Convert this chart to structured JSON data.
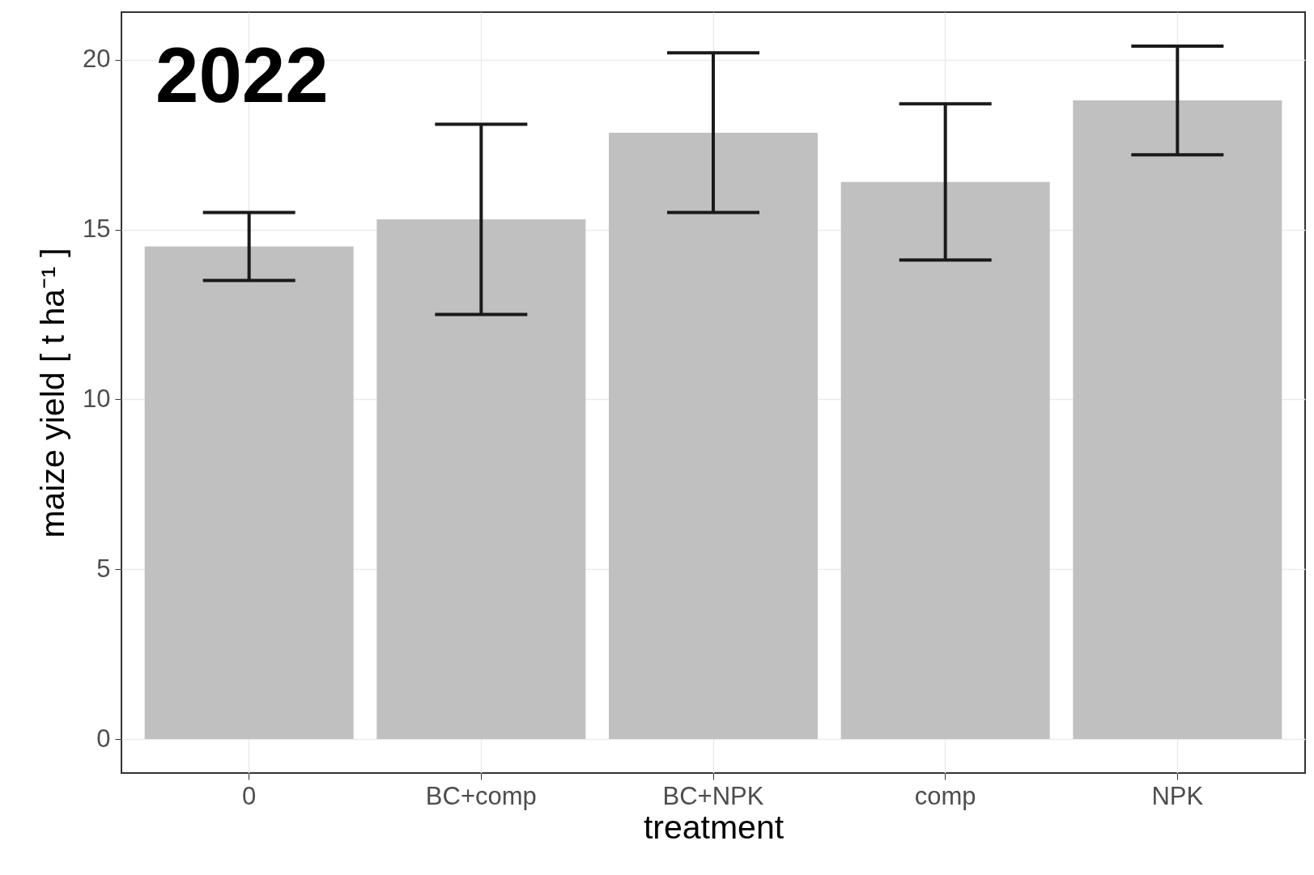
{
  "chart_data": {
    "type": "bar",
    "xlabel": "treatment",
    "ylabel": "maize yield [ t  ha⁻¹ ]",
    "annotations": [
      "2022"
    ],
    "categories": [
      "0",
      "BC+comp",
      "BC+NPK",
      "comp",
      "NPK"
    ],
    "values": [
      14.5,
      15.3,
      17.85,
      16.4,
      18.8
    ],
    "errors": [
      1.0,
      2.8,
      2.35,
      2.3,
      1.6
    ],
    "color": "#c0c0c0",
    "ylim": [
      -1.0,
      21.4
    ],
    "yticks": [
      0,
      5,
      10,
      15,
      20
    ],
    "grid": true
  }
}
